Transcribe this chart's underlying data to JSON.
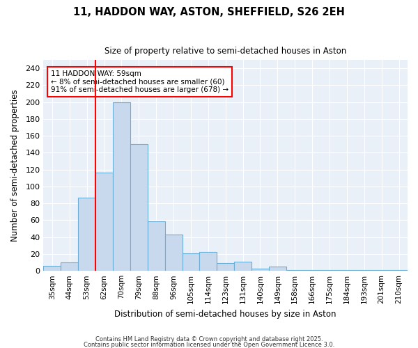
{
  "title1": "11, HADDON WAY, ASTON, SHEFFIELD, S26 2EH",
  "title2": "Size of property relative to semi-detached houses in Aston",
  "xlabel": "Distribution of semi-detached houses by size in Aston",
  "ylabel": "Number of semi-detached properties",
  "bar_labels": [
    "35sqm",
    "44sqm",
    "53sqm",
    "62sqm",
    "70sqm",
    "79sqm",
    "88sqm",
    "96sqm",
    "105sqm",
    "114sqm",
    "123sqm",
    "131sqm",
    "140sqm",
    "149sqm",
    "158sqm",
    "166sqm",
    "175sqm",
    "184sqm",
    "193sqm",
    "201sqm",
    "210sqm"
  ],
  "bar_values": [
    6,
    10,
    87,
    116,
    200,
    150,
    59,
    43,
    21,
    22,
    9,
    11,
    3,
    5,
    1,
    1,
    1,
    1,
    1,
    1,
    1
  ],
  "bar_color": "#c8d9ee",
  "bar_edge_color": "#6aadd5",
  "annotation_label": "11 HADDON WAY: 59sqm",
  "annotation_line1": "← 8% of semi-detached houses are smaller (60)",
  "annotation_line2": "91% of semi-detached houses are larger (678) →",
  "red_line_index": 2.5,
  "ylim": [
    0,
    250
  ],
  "yticks": [
    0,
    20,
    40,
    60,
    80,
    100,
    120,
    140,
    160,
    180,
    200,
    220,
    240
  ],
  "fig_bg": "#ffffff",
  "plot_bg": "#eaf0f8",
  "grid_color": "#ffffff",
  "footer1": "Contains HM Land Registry data © Crown copyright and database right 2025.",
  "footer2": "Contains public sector information licensed under the Open Government Licence 3.0."
}
